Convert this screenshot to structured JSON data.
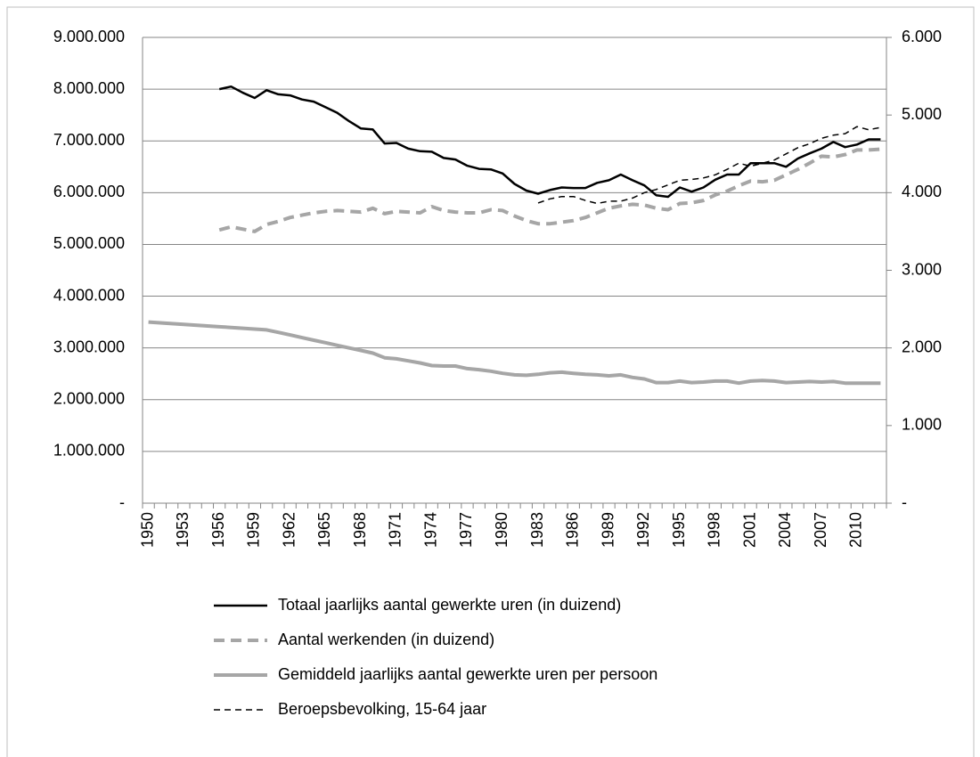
{
  "chart_data": {
    "type": "line",
    "categories": [
      "1950",
      null,
      null,
      "1953",
      null,
      null,
      "1956",
      null,
      null,
      "1959",
      null,
      null,
      "1962",
      null,
      null,
      "1965",
      null,
      null,
      "1968",
      null,
      null,
      "1971",
      null,
      null,
      "1974",
      null,
      null,
      "1977",
      null,
      null,
      "1980",
      null,
      null,
      "1983",
      null,
      null,
      "1986",
      null,
      null,
      "1989",
      null,
      null,
      "1992",
      null,
      null,
      "1995",
      null,
      null,
      "1998",
      null,
      null,
      "2001",
      null,
      null,
      "2004",
      null,
      null,
      "2007",
      null,
      null,
      "2010",
      null,
      null
    ],
    "series": [
      {
        "name": "Totaal jaarlijks aantal gewerkte uren (in duizend)",
        "color": "#000000",
        "line_style": "solid",
        "axis": "y",
        "values": [
          null,
          null,
          null,
          null,
          null,
          null,
          8000000,
          8050000,
          7930000,
          7830000,
          7980000,
          7900000,
          7880000,
          7800000,
          7760000,
          7650000,
          7540000,
          7380000,
          7240000,
          7220000,
          6950000,
          6960000,
          6850000,
          6800000,
          6790000,
          6670000,
          6640000,
          6520000,
          6460000,
          6450000,
          6370000,
          6170000,
          6040000,
          5980000,
          6050000,
          6100000,
          6090000,
          6090000,
          6190000,
          6240000,
          6350000,
          6240000,
          6140000,
          5950000,
          5920000,
          6100000,
          6020000,
          6100000,
          6250000,
          6350000,
          6350000,
          6570000,
          6570000,
          6570000,
          6500000,
          6660000,
          6760000,
          6850000,
          6980000,
          6880000,
          6930000,
          7030000,
          7030000
        ]
      },
      {
        "name": "Aantal werkenden (in duizend)",
        "color": "#a6a6a6",
        "line_style": "dashed",
        "axis": "y2",
        "values": [
          null,
          null,
          null,
          null,
          null,
          null,
          3520,
          3560,
          3530,
          3500,
          3590,
          3630,
          3680,
          3710,
          3740,
          3760,
          3770,
          3760,
          3750,
          3800,
          3730,
          3760,
          3750,
          3740,
          3820,
          3770,
          3750,
          3740,
          3740,
          3780,
          3770,
          3700,
          3640,
          3600,
          3600,
          3620,
          3640,
          3680,
          3740,
          3800,
          3830,
          3850,
          3840,
          3800,
          3780,
          3860,
          3870,
          3900,
          3970,
          4020,
          4090,
          4150,
          4140,
          4160,
          4230,
          4300,
          4380,
          4470,
          4460,
          4490,
          4550,
          4550,
          4560
        ]
      },
      {
        "name": "Gemiddeld jaarlijks aantal gewerkte uren per persoon",
        "color": "#a6a6a6",
        "line_style": "solid",
        "axis": "y2",
        "values": [
          2333,
          2323,
          2313,
          2303,
          2293,
          2283,
          2273,
          2263,
          2253,
          2243,
          2233,
          2200,
          2167,
          2133,
          2100,
          2067,
          2033,
          2000,
          1967,
          1933,
          1873,
          1860,
          1833,
          1807,
          1773,
          1767,
          1767,
          1733,
          1720,
          1700,
          1673,
          1653,
          1647,
          1660,
          1680,
          1687,
          1673,
          1660,
          1653,
          1640,
          1653,
          1620,
          1600,
          1553,
          1553,
          1573,
          1553,
          1560,
          1573,
          1573,
          1547,
          1573,
          1580,
          1573,
          1553,
          1560,
          1567,
          1560,
          1567,
          1547,
          1547,
          1547,
          1547
        ]
      },
      {
        "name": "Beroepsbevolking, 15-64 jaar",
        "color": "#000000",
        "line_style": "thin-dashed",
        "axis": "y2",
        "values": [
          null,
          null,
          null,
          null,
          null,
          null,
          null,
          null,
          null,
          null,
          null,
          null,
          null,
          null,
          null,
          null,
          null,
          null,
          null,
          null,
          null,
          null,
          null,
          null,
          null,
          null,
          null,
          null,
          null,
          null,
          null,
          null,
          null,
          3867,
          3920,
          3950,
          3950,
          3900,
          3860,
          3890,
          3890,
          3930,
          4000,
          4040,
          4100,
          4160,
          4170,
          4190,
          4230,
          4300,
          4380,
          4340,
          4380,
          4420,
          4500,
          4580,
          4630,
          4700,
          4740,
          4760,
          4850,
          4810,
          4840
        ]
      }
    ],
    "ylim": [
      0,
      9000000
    ],
    "yticks": [
      {
        "value": 0,
        "label": "-"
      },
      {
        "value": 1000000,
        "label": "1.000.000"
      },
      {
        "value": 2000000,
        "label": "2.000.000"
      },
      {
        "value": 3000000,
        "label": "3.000.000"
      },
      {
        "value": 4000000,
        "label": "4.000.000"
      },
      {
        "value": 5000000,
        "label": "5.000.000"
      },
      {
        "value": 6000000,
        "label": "6.000.000"
      },
      {
        "value": 7000000,
        "label": "7.000.000"
      },
      {
        "value": 8000000,
        "label": "8.000.000"
      },
      {
        "value": 9000000,
        "label": "9.000.000"
      }
    ],
    "y2lim": [
      0,
      6000
    ],
    "y2ticks": [
      {
        "value": 0,
        "label": "-"
      },
      {
        "value": 1000,
        "label": "1.000"
      },
      {
        "value": 2000,
        "label": "2.000"
      },
      {
        "value": 3000,
        "label": "3.000"
      },
      {
        "value": 4000,
        "label": "4.000"
      },
      {
        "value": 5000,
        "label": "5.000"
      },
      {
        "value": 6000,
        "label": "6.000"
      }
    ],
    "grid": true,
    "legend": "bottom"
  }
}
